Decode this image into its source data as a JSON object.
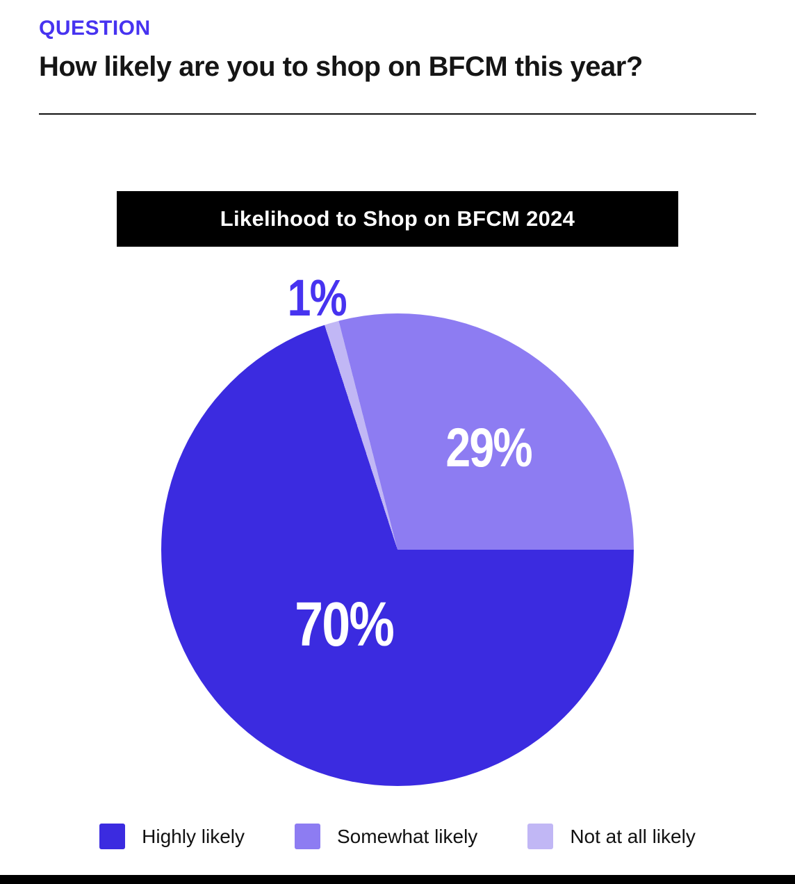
{
  "header": {
    "eyebrow": "QUESTION",
    "question": "How likely are you to shop on BFCM this year?"
  },
  "chart": {
    "banner_title": "Likelihood to Shop on BFCM 2024"
  },
  "chart_data": {
    "type": "pie",
    "title": "Likelihood to Shop on BFCM 2024",
    "labels": [
      "Highly likely",
      "Somewhat likely",
      "Not at all likely"
    ],
    "values": [
      70,
      29,
      1
    ],
    "colors": [
      "#3b2be0",
      "#8d7cf2",
      "#c1b7f5"
    ],
    "data_labels": [
      "70%",
      "29%",
      "1%"
    ],
    "legend_position": "bottom",
    "start_angle_deg": -18,
    "direction": "clockwise",
    "draw_order_indices": [
      2,
      1,
      0
    ],
    "accent_color": "#4733f0"
  }
}
